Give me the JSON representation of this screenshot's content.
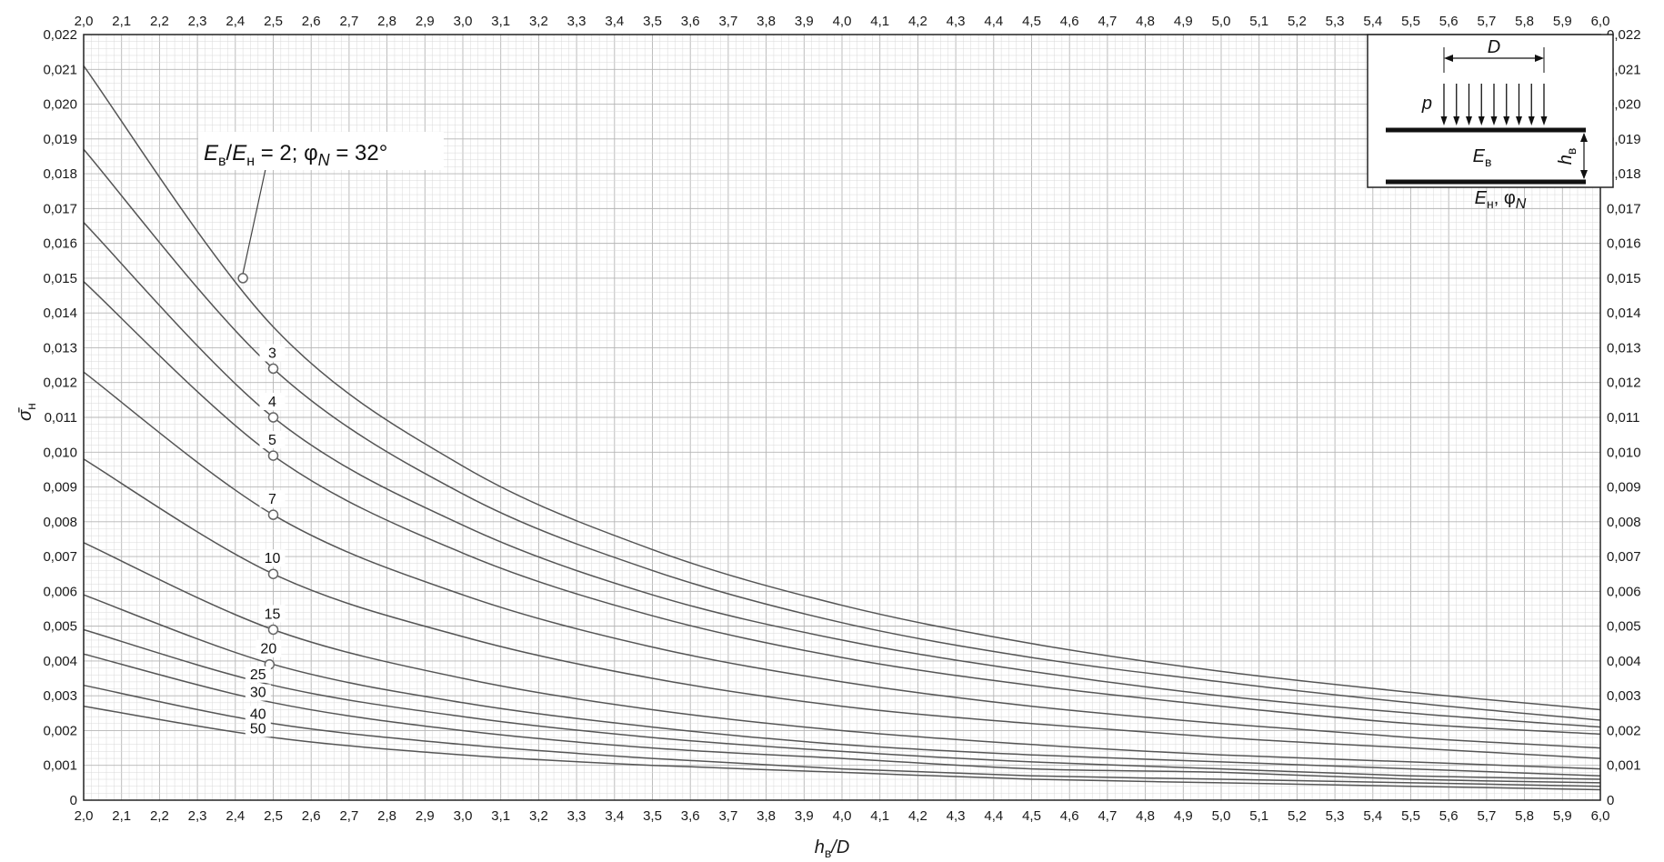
{
  "chart_data": {
    "type": "line",
    "xlabel_main": "h",
    "xlabel_sub": "в",
    "xlabel_tail": "/D",
    "ylabel_main": "σ̄",
    "ylabel_sub": "н",
    "xlim": [
      2.0,
      6.0
    ],
    "ylim": [
      0,
      0.022
    ],
    "x_ticks": [
      "2,0",
      "2,1",
      "2,2",
      "2,3",
      "2,4",
      "2,5",
      "2,6",
      "2,7",
      "2,8",
      "2,9",
      "3,0",
      "3,1",
      "3,2",
      "3,3",
      "3,4",
      "3,5",
      "3,6",
      "3,7",
      "3,8",
      "3,9",
      "4,0",
      "4,1",
      "4,2",
      "4,3",
      "4,4",
      "4,5",
      "4,6",
      "4,7",
      "4,8",
      "4,9",
      "5,0",
      "5,1",
      "5,2",
      "5,3",
      "5,4",
      "5,5",
      "5,6",
      "5,7",
      "5,8",
      "5,9",
      "6,0"
    ],
    "y_ticks": [
      "0",
      "0,001",
      "0,002",
      "0,003",
      "0,004",
      "0,005",
      "0,006",
      "0,007",
      "0,008",
      "0,009",
      "0,010",
      "0,011",
      "0,012",
      "0,013",
      "0,014",
      "0,015",
      "0,016",
      "0,017",
      "0,018",
      "0,019",
      "0,020",
      "0,021",
      "0,022"
    ],
    "grid": true,
    "x": [
      2.0,
      2.5,
      3.0,
      3.5,
      4.0,
      4.5,
      5.0,
      5.5,
      6.0
    ],
    "series": [
      {
        "name": "2",
        "values": [
          0.0211,
          0.0136,
          0.0096,
          0.0072,
          0.0056,
          0.0045,
          0.0037,
          0.0031,
          0.0026
        ],
        "marker_x": 2.42,
        "marker_y": 0.015
      },
      {
        "name": "3",
        "values": [
          0.0187,
          0.0124,
          0.0088,
          0.0066,
          0.0051,
          0.0041,
          0.0034,
          0.0028,
          0.0023
        ],
        "marker_x": 2.5,
        "marker_y": 0.0124
      },
      {
        "name": "4",
        "values": [
          0.0166,
          0.011,
          0.0079,
          0.0059,
          0.0046,
          0.0037,
          0.003,
          0.0025,
          0.0021
        ],
        "marker_x": 2.5,
        "marker_y": 0.011
      },
      {
        "name": "5",
        "values": [
          0.0149,
          0.0099,
          0.0071,
          0.0053,
          0.0041,
          0.0033,
          0.0027,
          0.0022,
          0.0019
        ],
        "marker_x": 2.5,
        "marker_y": 0.0099
      },
      {
        "name": "7",
        "values": [
          0.0123,
          0.0082,
          0.0059,
          0.0044,
          0.0034,
          0.0027,
          0.0022,
          0.0018,
          0.0015
        ],
        "marker_x": 2.5,
        "marker_y": 0.0082
      },
      {
        "name": "10",
        "values": [
          0.0098,
          0.0065,
          0.0047,
          0.0035,
          0.0027,
          0.0022,
          0.0018,
          0.0015,
          0.0012
        ],
        "marker_x": 2.5,
        "marker_y": 0.0065
      },
      {
        "name": "15",
        "values": [
          0.0074,
          0.0049,
          0.0035,
          0.0026,
          0.002,
          0.0016,
          0.0013,
          0.0011,
          0.0009
        ],
        "marker_x": 2.5,
        "marker_y": 0.0049
      },
      {
        "name": "20",
        "values": [
          0.0059,
          0.0039,
          0.0028,
          0.0021,
          0.0016,
          0.0013,
          0.0011,
          0.0009,
          0.0007
        ],
        "marker_x": 2.49,
        "marker_y": 0.0039
      },
      {
        "name": "25",
        "values": [
          0.0049,
          0.0033,
          0.0024,
          0.0018,
          0.0014,
          0.0011,
          0.0009,
          0.0007,
          0.0006
        ]
      },
      {
        "name": "30",
        "values": [
          0.0042,
          0.0028,
          0.002,
          0.0015,
          0.0012,
          0.0009,
          0.0008,
          0.0006,
          0.0005
        ]
      },
      {
        "name": "40",
        "values": [
          0.0033,
          0.0022,
          0.0016,
          0.0012,
          0.0009,
          0.0007,
          0.0006,
          0.0005,
          0.0004
        ]
      },
      {
        "name": "50",
        "values": [
          0.0027,
          0.0018,
          0.0013,
          0.001,
          0.0008,
          0.0006,
          0.0005,
          0.0004,
          0.0003
        ]
      }
    ],
    "callout": {
      "E1": "E",
      "s1": "в",
      "slash": "/",
      "E2": "E",
      "s2": "н",
      "rest": " = 2; φ",
      "phiSub": "N",
      "tail": " = 32°"
    },
    "inset": {
      "D": "D",
      "p": "p",
      "Eb": "E",
      "Eb_sub": "в",
      "hb": "h",
      "hb_sub": "в",
      "En": "E",
      "En_sub": "н",
      "phi": ", φ",
      "phi_sub": "N"
    }
  },
  "colors": {
    "curve": "#555555",
    "grid_minor": "#d9d9d9",
    "grid_major": "#b5b5b5",
    "frame": "#222222"
  }
}
